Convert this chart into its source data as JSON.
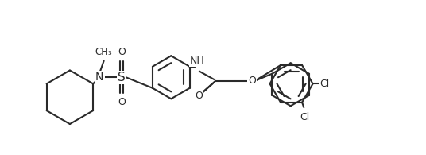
{
  "bg": "#ffffff",
  "lc": "#2a2a2a",
  "lw": 1.5,
  "fs": 9.0,
  "figsize": [
    5.36,
    1.95
  ],
  "dpi": 100,
  "xlim": [
    -0.3,
    10.5
  ],
  "ylim": [
    -0.5,
    3.8
  ]
}
